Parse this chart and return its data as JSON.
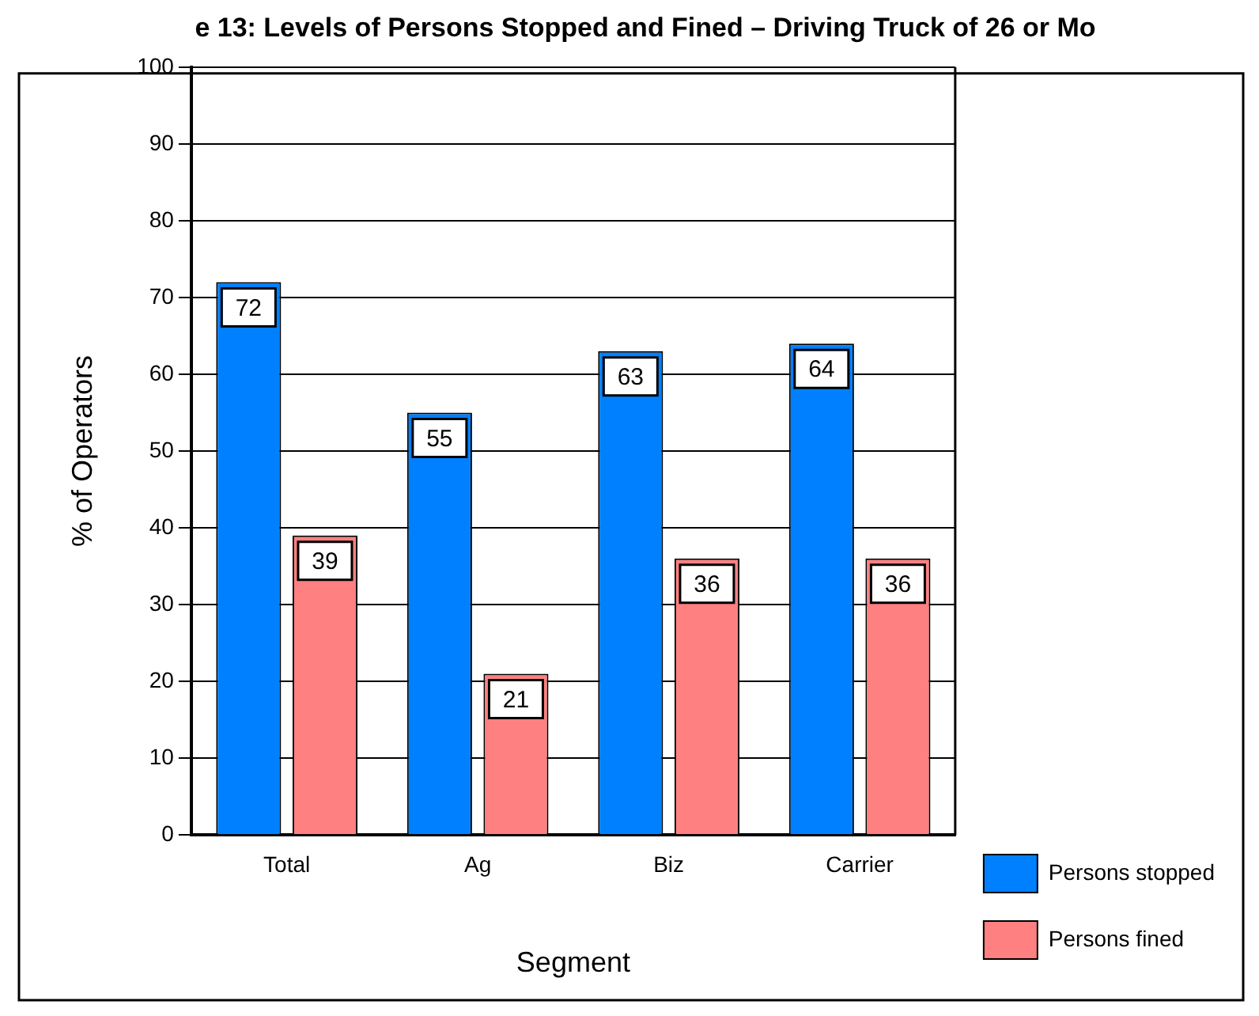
{
  "chart_data": {
    "type": "bar",
    "title": "e 13: Levels of Persons Stopped and Fined – Driving Truck of 26 or Mo",
    "xlabel": "Segment",
    "ylabel": "% of Operators",
    "categories": [
      "Total",
      "Ag",
      "Biz",
      "Carrier"
    ],
    "series": [
      {
        "name": "Persons stopped",
        "color": "#0080ff",
        "values": [
          72,
          55,
          63,
          64
        ]
      },
      {
        "name": "Persons fined",
        "color": "#ff8080",
        "values": [
          39,
          21,
          36,
          36
        ]
      }
    ],
    "ylim": [
      0,
      100
    ],
    "yticks": [
      0,
      10,
      20,
      30,
      40,
      50,
      60,
      70,
      80,
      90,
      100
    ],
    "grid": "y",
    "legend": "right",
    "data_labels": true
  }
}
